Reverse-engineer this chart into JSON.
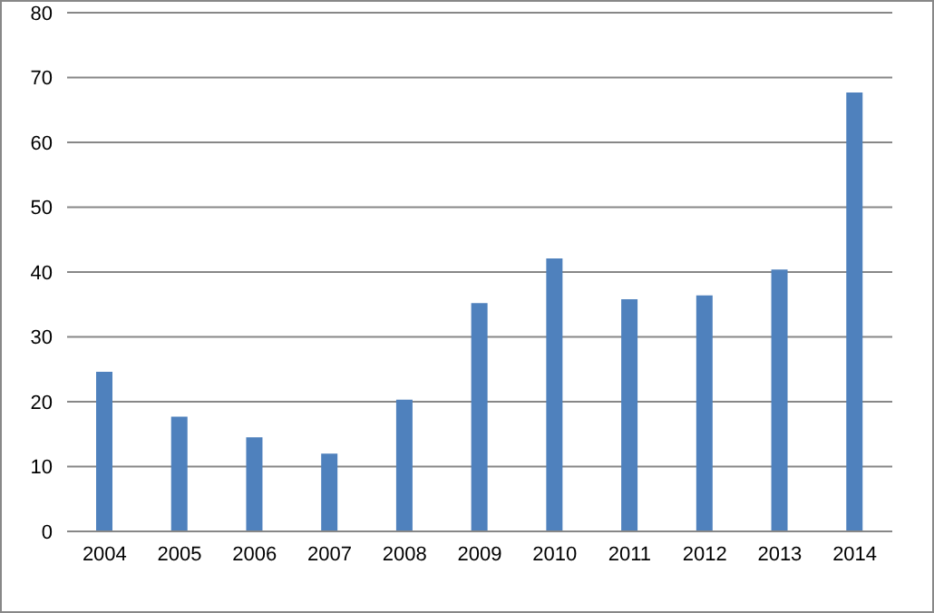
{
  "chart_data": {
    "type": "bar",
    "categories": [
      "2004",
      "2005",
      "2006",
      "2007",
      "2008",
      "2009",
      "2010",
      "2011",
      "2012",
      "2013",
      "2014"
    ],
    "values": [
      24.6,
      17.7,
      14.5,
      12.0,
      20.3,
      35.2,
      42.1,
      35.8,
      36.4,
      40.4,
      67.7
    ],
    "color": "#4f81bd",
    "ylim": [
      0,
      80
    ],
    "yticks": [
      0,
      10,
      20,
      30,
      40,
      50,
      60,
      70,
      80
    ],
    "grid": "y"
  }
}
